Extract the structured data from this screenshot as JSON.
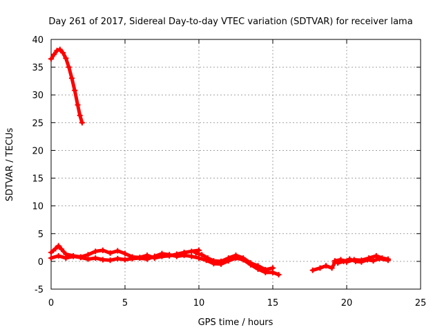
{
  "chart_data": {
    "type": "scatter",
    "title": "Day 261 of 2017, Sidereal Day-to-day VTEC variation (SDTVAR) for receiver lama",
    "xlabel": "GPS time / hours",
    "ylabel": "SDTVAR / TECUs",
    "xlim": [
      0,
      25
    ],
    "ylim": [
      -5,
      40
    ],
    "xticks": [
      0,
      5,
      10,
      15,
      20,
      25
    ],
    "yticks": [
      -5,
      0,
      5,
      10,
      15,
      20,
      25,
      30,
      35,
      40
    ],
    "grid": true,
    "series": [
      {
        "name": "SDTVAR",
        "color": "#ff0000",
        "segments": [
          [
            [
              0.0,
              36.5
            ],
            [
              0.2,
              37.3
            ],
            [
              0.4,
              38.0
            ],
            [
              0.6,
              38.2
            ],
            [
              0.8,
              37.6
            ],
            [
              1.0,
              36.6
            ],
            [
              1.2,
              35.0
            ],
            [
              1.4,
              33.0
            ],
            [
              1.6,
              30.8
            ],
            [
              1.8,
              28.2
            ],
            [
              1.95,
              26.3
            ],
            [
              2.1,
              25.0
            ]
          ],
          [
            [
              0.0,
              1.6
            ],
            [
              0.3,
              2.3
            ],
            [
              0.5,
              2.8
            ],
            [
              0.7,
              2.2
            ],
            [
              1.0,
              1.3
            ],
            [
              1.5,
              1.0
            ],
            [
              2.0,
              0.8
            ],
            [
              2.5,
              1.2
            ],
            [
              3.0,
              1.8
            ],
            [
              3.5,
              2.0
            ],
            [
              4.0,
              1.5
            ],
            [
              4.5,
              1.9
            ],
            [
              5.0,
              1.4
            ],
            [
              5.5,
              0.8
            ],
            [
              6.0,
              0.7
            ],
            [
              6.5,
              1.1
            ],
            [
              7.0,
              0.6
            ],
            [
              7.5,
              0.9
            ],
            [
              8.0,
              1.0
            ],
            [
              8.5,
              1.3
            ],
            [
              9.0,
              1.6
            ],
            [
              9.5,
              1.8
            ],
            [
              10.0,
              2.0
            ]
          ],
          [
            [
              0.0,
              0.6
            ],
            [
              0.5,
              1.0
            ],
            [
              1.0,
              0.6
            ],
            [
              1.5,
              0.9
            ],
            [
              2.0,
              0.7
            ],
            [
              2.5,
              0.4
            ],
            [
              3.0,
              0.6
            ],
            [
              3.5,
              0.3
            ],
            [
              4.0,
              0.2
            ],
            [
              4.5,
              0.5
            ],
            [
              5.0,
              0.3
            ],
            [
              5.5,
              0.5
            ],
            [
              6.0,
              0.6
            ],
            [
              6.5,
              0.4
            ],
            [
              7.0,
              0.9
            ],
            [
              7.5,
              1.4
            ],
            [
              8.0,
              1.2
            ],
            [
              8.5,
              0.9
            ],
            [
              9.0,
              1.1
            ],
            [
              9.5,
              0.9
            ],
            [
              10.0,
              0.6
            ],
            [
              10.5,
              0.2
            ],
            [
              11.0,
              -0.4
            ],
            [
              11.5,
              -0.5
            ],
            [
              12.0,
              0.1
            ],
            [
              12.5,
              0.6
            ],
            [
              13.0,
              0.3
            ],
            [
              13.5,
              -0.6
            ],
            [
              14.0,
              -1.4
            ],
            [
              14.5,
              -2.0
            ],
            [
              15.0,
              -2.0
            ],
            [
              15.4,
              -2.4
            ]
          ],
          [
            [
              9.8,
              1.5
            ],
            [
              10.2,
              1.2
            ],
            [
              10.6,
              0.6
            ],
            [
              11.0,
              0.1
            ],
            [
              11.5,
              0.0
            ],
            [
              12.0,
              0.6
            ],
            [
              12.5,
              1.1
            ],
            [
              13.0,
              0.6
            ],
            [
              13.5,
              -0.3
            ],
            [
              14.0,
              -0.8
            ],
            [
              14.5,
              -1.5
            ],
            [
              15.0,
              -1.2
            ]
          ],
          [
            [
              17.7,
              -1.6
            ],
            [
              18.2,
              -1.2
            ],
            [
              18.6,
              -0.8
            ],
            [
              19.0,
              -1.2
            ],
            [
              19.2,
              -0.2
            ]
          ],
          [
            [
              19.2,
              0.1
            ],
            [
              19.6,
              0.3
            ],
            [
              20.0,
              -0.1
            ],
            [
              20.5,
              0.3
            ],
            [
              21.0,
              0.2
            ],
            [
              21.5,
              0.6
            ],
            [
              22.0,
              1.0
            ],
            [
              22.4,
              0.6
            ],
            [
              22.8,
              0.4
            ]
          ],
          [
            [
              19.4,
              -0.3
            ],
            [
              19.8,
              0.0
            ],
            [
              20.2,
              0.4
            ],
            [
              20.6,
              0.0
            ],
            [
              21.0,
              -0.1
            ],
            [
              21.4,
              0.3
            ],
            [
              21.8,
              0.1
            ],
            [
              22.2,
              0.5
            ],
            [
              22.8,
              0.2
            ]
          ]
        ]
      }
    ]
  }
}
